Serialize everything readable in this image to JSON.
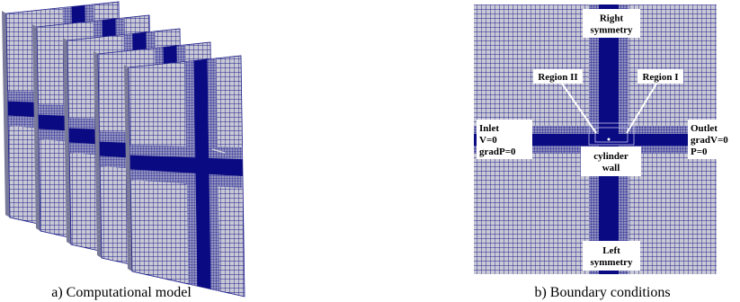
{
  "left": {
    "caption": "a) Computational model"
  },
  "right": {
    "caption": "b) Boundary conditions",
    "labels": [
      {
        "lines": [
          "Right",
          "symmetry"
        ]
      },
      {
        "lines": [
          "Region II"
        ]
      },
      {
        "lines": [
          "Region I"
        ]
      },
      {
        "lines": [
          "Inlet",
          "V=0",
          "gradP=0"
        ]
      },
      {
        "lines": [
          "cylinder",
          "wall"
        ]
      },
      {
        "lines": [
          "Outlet",
          "gradV=0",
          "P=0"
        ]
      },
      {
        "lines": [
          "Left",
          "symmetry"
        ]
      }
    ]
  }
}
